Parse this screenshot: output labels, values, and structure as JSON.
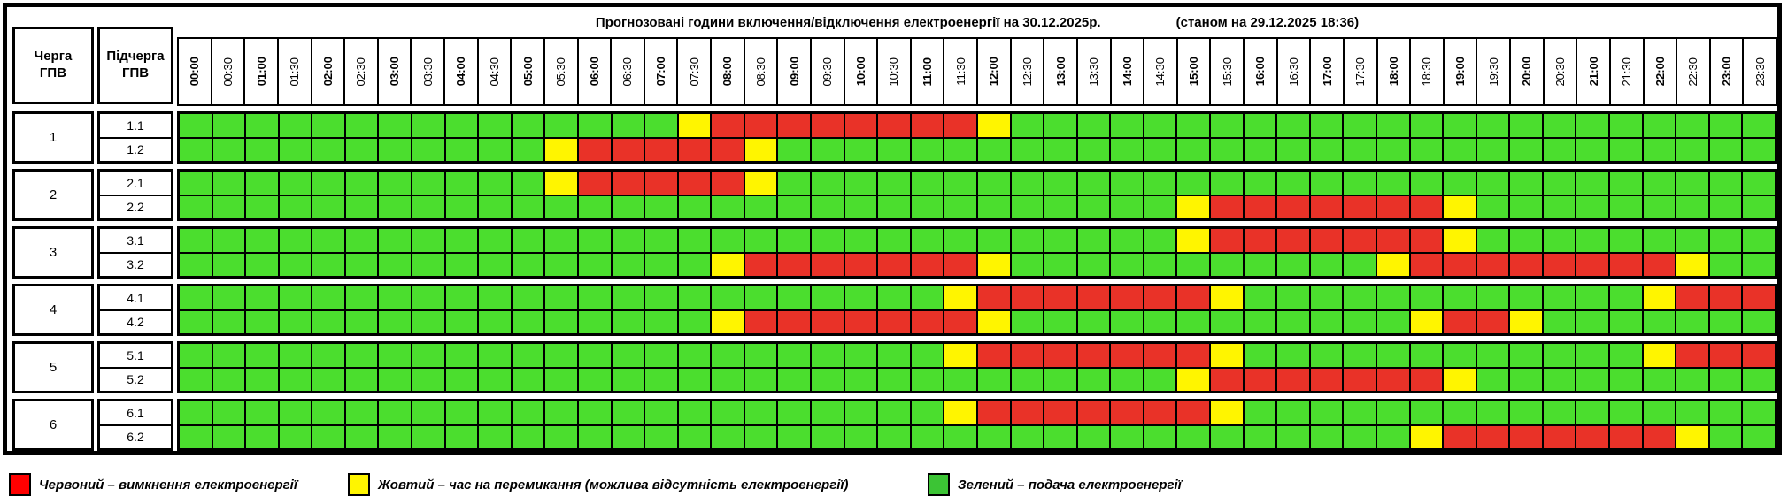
{
  "header": {
    "queue_col": "Черга\nГПВ",
    "subqueue_col": "Підчерга\nГПВ"
  },
  "chart_data": {
    "type": "heatmap",
    "title": "Прогнозовані години включення/відключення електроенергії на 30.12.2025р.",
    "subtitle": "(станом на 29.12.2025 18:36)",
    "x_labels": [
      "00:00",
      "00:30",
      "01:00",
      "01:30",
      "02:00",
      "02:30",
      "03:00",
      "03:30",
      "04:00",
      "04:30",
      "05:00",
      "05:30",
      "06:00",
      "06:30",
      "07:00",
      "07:30",
      "08:00",
      "08:30",
      "09:00",
      "09:30",
      "10:00",
      "10:30",
      "11:00",
      "11:30",
      "12:00",
      "12:30",
      "13:00",
      "13:30",
      "14:00",
      "14:30",
      "15:00",
      "15:30",
      "16:00",
      "16:30",
      "17:00",
      "17:30",
      "18:00",
      "18:30",
      "19:00",
      "19:30",
      "20:00",
      "20:30",
      "21:00",
      "21:30",
      "22:00",
      "22:30",
      "23:00",
      "23:30"
    ],
    "status_colors": {
      "G": "#4BDE2E",
      "Y": "#FFF500",
      "R": "#E93228"
    },
    "status_meanings": {
      "G": "подача електроенергії",
      "Y": "час на перемикання (можлива відсутність електроенергії)",
      "R": "вимкнення електроенергії"
    },
    "rows": [
      {
        "queue": "1",
        "subqueue": "1.1",
        "statuses": "GGGGGGGGGGGGGGGYRRRRRRRRYGGGGGGGGGGGGGGGGGGGGGGG"
      },
      {
        "queue": "1",
        "subqueue": "1.2",
        "statuses": "GGGGGGGGGGGYRRRRRYGGGGGGGGGGGGGGGGGGGGGGGGGGGGGG"
      },
      {
        "queue": "2",
        "subqueue": "2.1",
        "statuses": "GGGGGGGGGGGYRRRRRYGGGGGGGGGGGGGGGGGGGGGGGGGGGGGG"
      },
      {
        "queue": "2",
        "subqueue": "2.2",
        "statuses": "GGGGGGGGGGGGGGGGGGGGGGGGGGGGGGYRRRRRRRYGGGGGGGGG"
      },
      {
        "queue": "3",
        "subqueue": "3.1",
        "statuses": "GGGGGGGGGGGGGGGGGGGGGGGGGGGGGGYRRRRRRRYGGGGGGGGG"
      },
      {
        "queue": "3",
        "subqueue": "3.2",
        "statuses": "GGGGGGGGGGGGGGGGYRRRRRRRYGGGGGGGGGGGYRRRRRRRRYGG"
      },
      {
        "queue": "4",
        "subqueue": "4.1",
        "statuses": "GGGGGGGGGGGGGGGGGGGGGGGYRRRRRRRYGGGGGGGGGGGGYRRR"
      },
      {
        "queue": "4",
        "subqueue": "4.2",
        "statuses": "GGGGGGGGGGGGGGGGYRRRRRRRYGGGGGGGGGGGGYRRYGGGGGGG"
      },
      {
        "queue": "5",
        "subqueue": "5.1",
        "statuses": "GGGGGGGGGGGGGGGGGGGGGGGYRRRRRRRYGGGGGGGGGGGGYRRR"
      },
      {
        "queue": "5",
        "subqueue": "5.2",
        "statuses": "GGGGGGGGGGGGGGGGGGGGGGGGGGGGGGYRRRRRRRYGGGGGGGGG"
      },
      {
        "queue": "6",
        "subqueue": "6.1",
        "statuses": "GGGGGGGGGGGGGGGGGGGGGGGYRRRRRRRYGGGGGGGGGGGGGGGG"
      },
      {
        "queue": "6",
        "subqueue": "6.2",
        "statuses": "GGGGGGGGGGGGGGGGGGGGGGGGGGGGGGGGGGGGGYRRRRRRRYGG"
      }
    ]
  },
  "legend": [
    {
      "key": "red",
      "swatch": "#FF0000",
      "text": "Червоний – вимкнення електроенергії"
    },
    {
      "key": "yellow",
      "swatch": "#FFF500",
      "text": "Жовтий – час на перемикання (можлива відсутність електроенергії)"
    },
    {
      "key": "green",
      "swatch": "#3CC435",
      "text": "Зелений – подача електроенергії"
    }
  ]
}
